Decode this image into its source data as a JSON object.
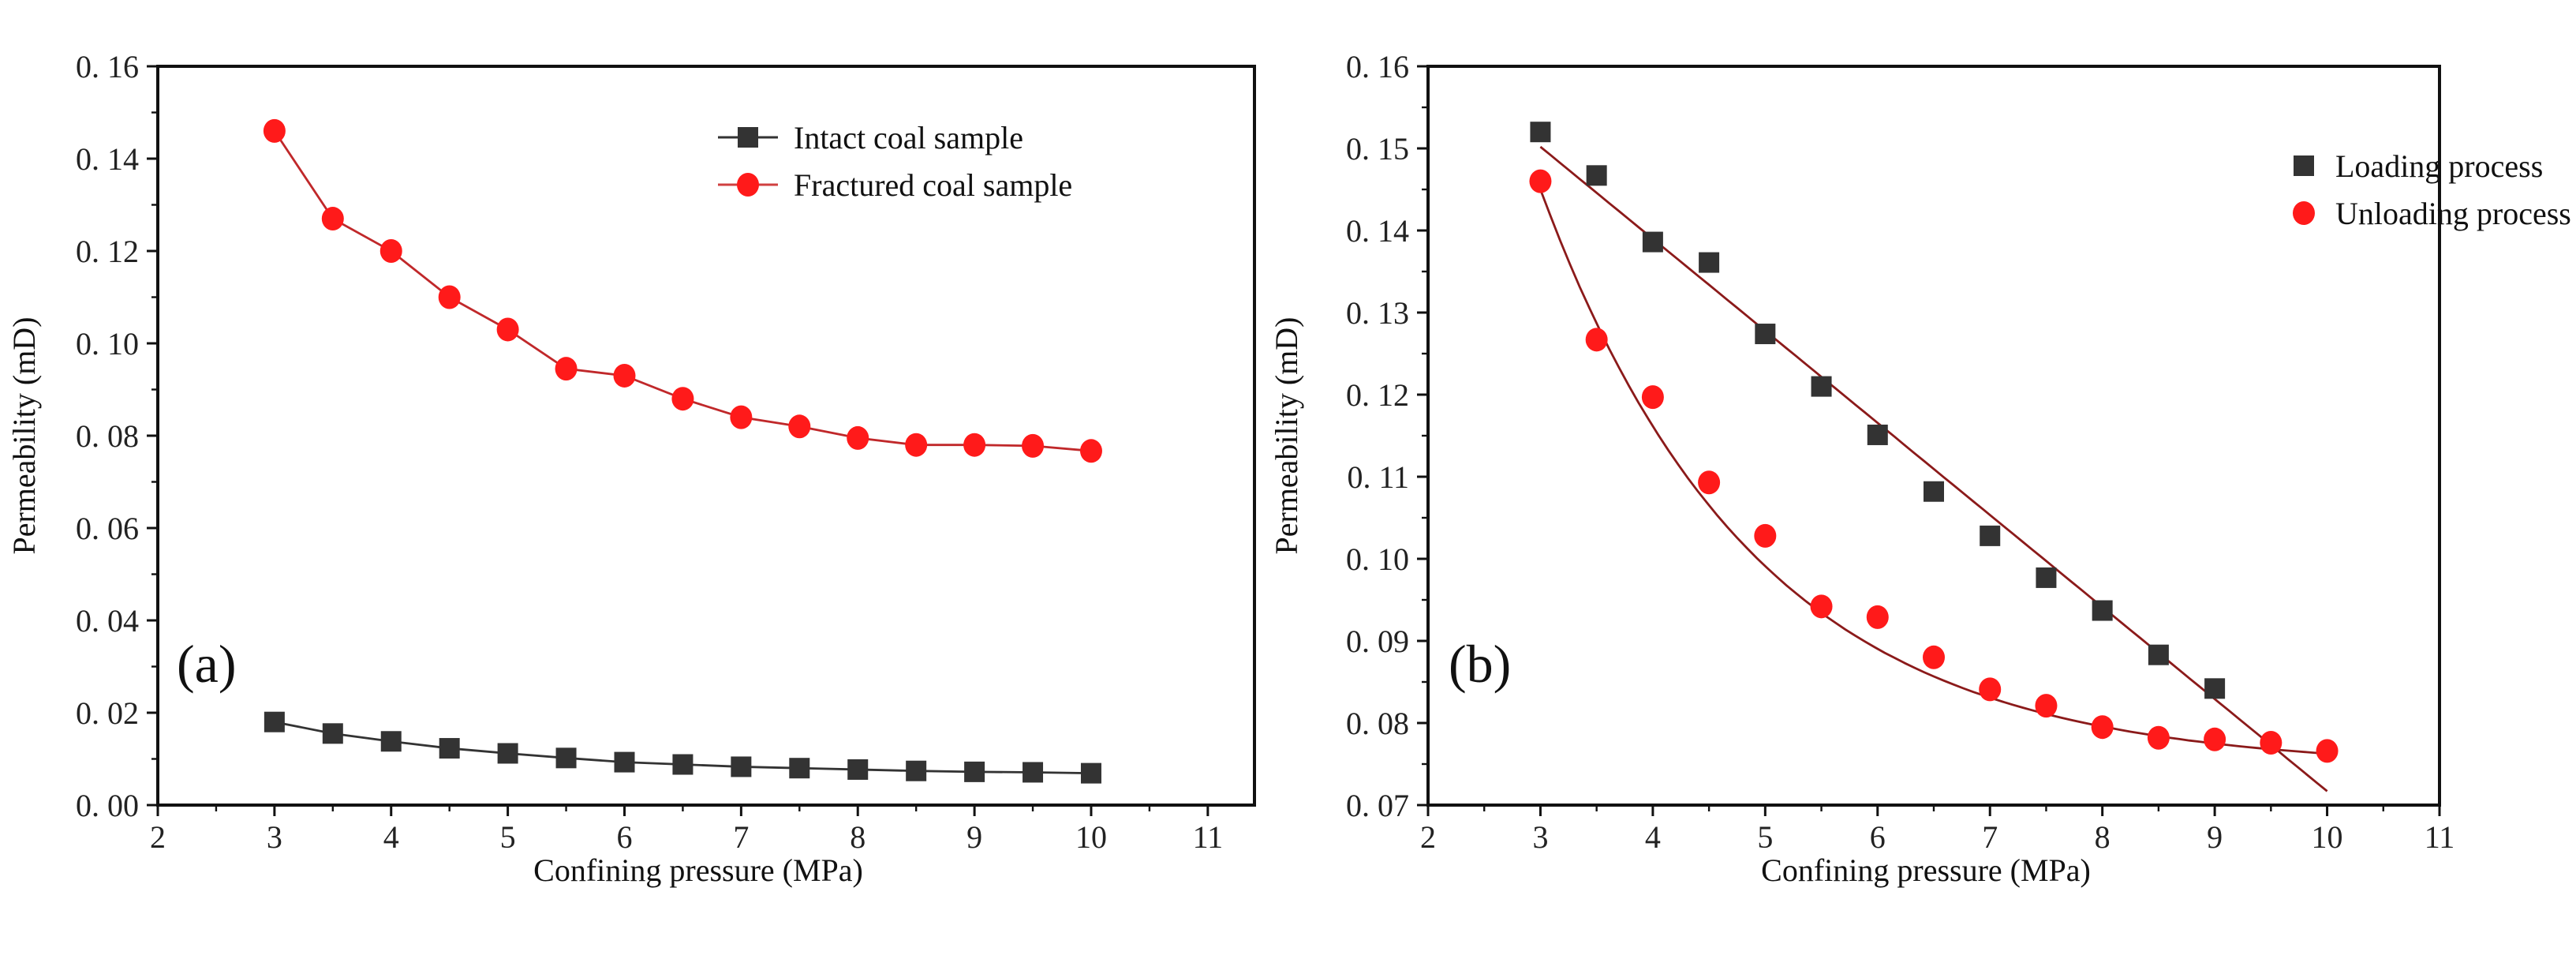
{
  "chart_data": [
    {
      "type": "line",
      "panel_label": "(a)",
      "xlabel": "Confining pressure (MPa)",
      "ylabel": "Permeability (mD)",
      "xlim": [
        2,
        11.4
      ],
      "ylim": [
        0,
        0.16
      ],
      "x_ticks": [
        2,
        3,
        4,
        5,
        6,
        7,
        8,
        9,
        10,
        11
      ],
      "x_tick_labels": [
        "2",
        "3",
        "4",
        "5",
        "6",
        "7",
        "8",
        "9",
        "10",
        "11"
      ],
      "y_ticks": [
        0,
        0.02,
        0.04,
        0.06,
        0.08,
        0.1,
        0.12,
        0.14,
        0.16
      ],
      "y_tick_labels": [
        "0. 00",
        "0. 02",
        "0. 04",
        "0. 06",
        "0. 08",
        "0. 10",
        "0. 12",
        "0. 14",
        "0. 16"
      ],
      "legend_position": "top-right",
      "x": [
        3,
        3.5,
        4,
        4.5,
        5,
        5.5,
        6,
        6.5,
        7,
        7.5,
        8,
        8.5,
        9,
        9.5,
        10
      ],
      "series": [
        {
          "name": "Intact coal sample",
          "marker": "square",
          "color": "#333333",
          "values": [
            0.018,
            0.0155,
            0.0138,
            0.0123,
            0.0112,
            0.0102,
            0.0093,
            0.0088,
            0.0083,
            0.008,
            0.0077,
            0.0074,
            0.0072,
            0.0071,
            0.0069
          ]
        },
        {
          "name": "Fractured coal sample",
          "marker": "circle",
          "color": "#ff1a1a",
          "values": [
            0.146,
            0.127,
            0.12,
            0.11,
            0.103,
            0.0945,
            0.093,
            0.088,
            0.084,
            0.082,
            0.0795,
            0.078,
            0.078,
            0.0778,
            0.0767
          ]
        }
      ]
    },
    {
      "type": "scatter",
      "panel_label": "(b)",
      "xlabel": "Confining pressure (MPa)",
      "ylabel": "Permeability (mD)",
      "xlim": [
        2,
        11
      ],
      "ylim": [
        0.07,
        0.16
      ],
      "x_ticks": [
        2,
        3,
        4,
        5,
        6,
        7,
        8,
        9,
        10,
        11
      ],
      "x_tick_labels": [
        "2",
        "3",
        "4",
        "5",
        "6",
        "7",
        "8",
        "9",
        "10",
        "11"
      ],
      "y_ticks": [
        0.07,
        0.08,
        0.09,
        0.1,
        0.11,
        0.12,
        0.13,
        0.14,
        0.15,
        0.16
      ],
      "y_tick_labels": [
        "0. 07",
        "0. 08",
        "0. 09",
        "0. 10",
        "0. 11",
        "0. 12",
        "0. 13",
        "0. 14",
        "0. 15",
        "0. 16"
      ],
      "legend_position": "top-right",
      "series": [
        {
          "name": "Loading process",
          "marker": "square",
          "color": "#333333",
          "x": [
            3,
            3.5,
            4,
            4.5,
            5,
            5.5,
            6,
            6.5,
            7,
            7.5,
            8,
            8.5,
            9
          ],
          "values": [
            0.152,
            0.1467,
            0.1386,
            0.1361,
            0.1274,
            0.121,
            0.1151,
            0.1082,
            0.1028,
            0.0977,
            0.0937,
            0.0883,
            0.0842
          ],
          "fit": {
            "kind": "linear",
            "x_range": [
              3,
              10
            ],
            "y_start": 0.1502,
            "y_end": 0.0717,
            "color": "#8b1a1a"
          }
        },
        {
          "name": "Unloading process",
          "marker": "circle",
          "color": "#ff1a1a",
          "x": [
            3,
            3.5,
            4,
            4.5,
            5,
            5.5,
            6,
            6.5,
            7,
            7.5,
            8,
            8.5,
            9,
            9.5,
            10
          ],
          "values": [
            0.146,
            0.1267,
            0.1197,
            0.1093,
            0.1028,
            0.0942,
            0.0929,
            0.088,
            0.0841,
            0.0821,
            0.0795,
            0.0782,
            0.078,
            0.0776,
            0.0766
          ],
          "fit": {
            "kind": "exponential-decay",
            "x_range": [
              3,
              10
            ],
            "y0": 0.0745,
            "amplitude": 0.0705,
            "tau": 1.9,
            "color": "#8b1a1a"
          }
        }
      ]
    }
  ]
}
